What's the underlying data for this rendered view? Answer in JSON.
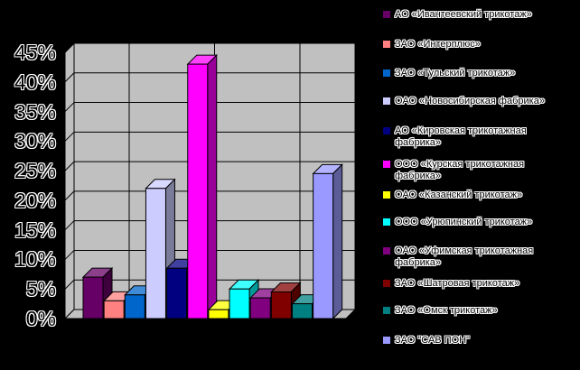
{
  "colors": {
    "background": "#000000",
    "wall": "#C0C0C0",
    "grid_line": "#000000"
  },
  "chart_data": {
    "type": "bar",
    "style": "3d-bar",
    "title": "",
    "xlabel": "",
    "ylabel": "",
    "ylim": [
      0,
      45
    ],
    "ytick_step": 5,
    "ytick_labels": [
      "0%",
      "5%",
      "10%",
      "15%",
      "20%",
      "25%",
      "30%",
      "35%",
      "40%",
      "45%"
    ],
    "grid": true,
    "legend_position": "right",
    "series": [
      {
        "name": "АО «Ивантеевский трикотаж»",
        "value": 7,
        "color": "#660066"
      },
      {
        "name": "ЗАО «Интерплюс»",
        "value": 3,
        "color": "#FF8080"
      },
      {
        "name": "ЗАО «Тульский трикотаж»",
        "value": 4,
        "color": "#0066CC"
      },
      {
        "name": "ОАО «Новосибирская фабрика»",
        "value": 22,
        "color": "#CCCCFF"
      },
      {
        "name": "АО «Кировская трикотажная фабрика»",
        "value": 8.5,
        "color": "#000080"
      },
      {
        "name": "ООО «Курская трикотажная фабрика»",
        "value": 43,
        "color": "#FF00FF"
      },
      {
        "name": "ОАО «Казанский трикотаж»",
        "value": 1.5,
        "color": "#FFFF00"
      },
      {
        "name": "ООО «Урюпинский трикотаж»",
        "value": 5,
        "color": "#00FFFF"
      },
      {
        "name": "ОАО «Уфимская трикотажная фабрика»",
        "value": 3.5,
        "color": "#800080"
      },
      {
        "name": "ЗАО «Шатровая трикотаж»",
        "value": 4.5,
        "color": "#800000"
      },
      {
        "name": "ЗАО «Омск трикотаж»",
        "value": 2.5,
        "color": "#008080"
      },
      {
        "name": "ЗАО \"САВ ПОН\"",
        "value": 24.5,
        "color": "#9999FF"
      }
    ]
  }
}
